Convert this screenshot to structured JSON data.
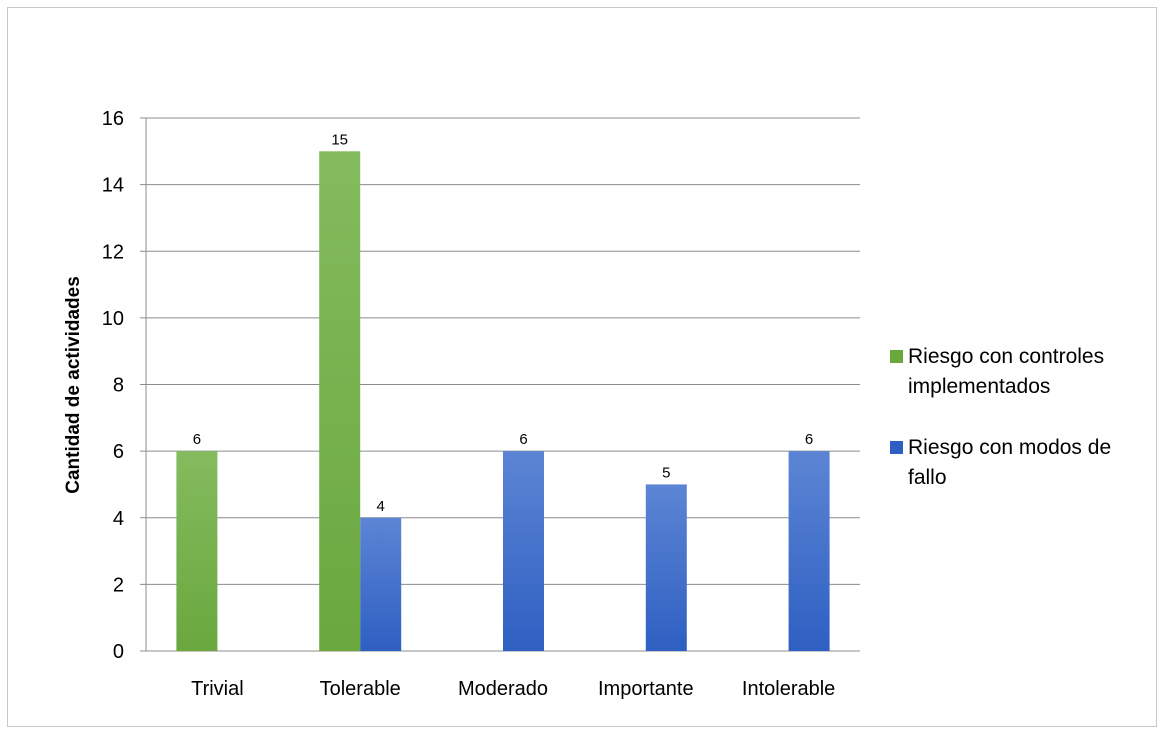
{
  "chart_data": {
    "type": "bar",
    "categories": [
      "Trivial",
      "Tolerable",
      "Moderado",
      "Importante",
      "Intolerable"
    ],
    "series": [
      {
        "name": "Riesgo con controles implementados",
        "values": [
          6,
          15,
          null,
          null,
          null
        ],
        "color": "#6aa83e",
        "color_light": "#84bb5e"
      },
      {
        "name": "Riesgo con modos de fallo",
        "values": [
          null,
          4,
          6,
          5,
          6
        ],
        "color": "#2e5fc2",
        "color_light": "#5c85d4"
      }
    ],
    "xlabel": "",
    "ylabel": "Cantidad de actividades",
    "ylim": [
      0,
      16
    ],
    "yticks": [
      0,
      2,
      4,
      6,
      8,
      10,
      12,
      14,
      16
    ],
    "grid": true,
    "legend_position": "right"
  }
}
